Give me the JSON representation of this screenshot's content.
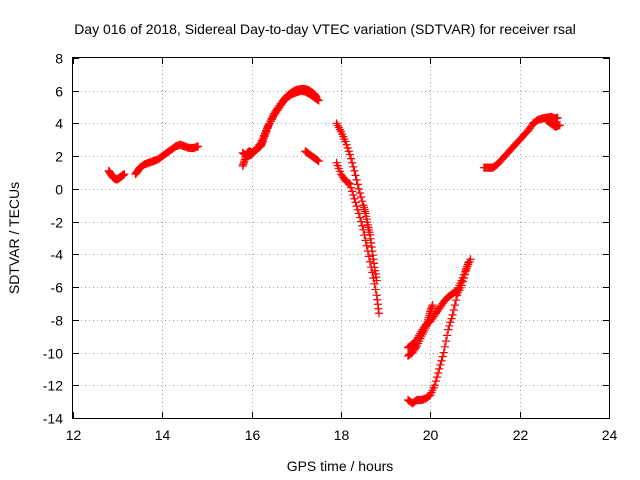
{
  "chart_data": {
    "type": "scatter",
    "title": "Day 016 of 2018, Sidereal Day-to-day VTEC variation (SDTVAR) for receiver rsal",
    "xlabel": "GPS time / hours",
    "ylabel": "SDTVAR / TECUs",
    "xlim": [
      12,
      24
    ],
    "ylim": [
      -14,
      8
    ],
    "xticks": [
      12,
      14,
      16,
      18,
      20,
      22,
      24
    ],
    "yticks": [
      -14,
      -12,
      -10,
      -8,
      -6,
      -4,
      -2,
      0,
      2,
      4,
      6,
      8
    ],
    "grid": true,
    "marker": "+",
    "series": [
      {
        "name": "sdtvar",
        "color": "#ff0000",
        "segments": [
          [
            [
              12.8,
              1.1
            ],
            [
              12.85,
              0.9
            ],
            [
              12.9,
              0.7
            ],
            [
              12.95,
              0.6
            ],
            [
              13.0,
              0.6
            ],
            [
              13.05,
              0.7
            ],
            [
              13.1,
              0.8
            ],
            [
              13.15,
              0.9
            ]
          ],
          [
            [
              13.4,
              0.9
            ],
            [
              13.45,
              1.1
            ],
            [
              13.5,
              1.3
            ],
            [
              13.6,
              1.5
            ],
            [
              13.7,
              1.6
            ],
            [
              13.8,
              1.7
            ],
            [
              13.9,
              1.8
            ],
            [
              14.0,
              2.0
            ],
            [
              14.1,
              2.2
            ],
            [
              14.2,
              2.4
            ],
            [
              14.3,
              2.6
            ],
            [
              14.4,
              2.7
            ],
            [
              14.5,
              2.6
            ],
            [
              14.6,
              2.5
            ],
            [
              14.7,
              2.5
            ],
            [
              14.8,
              2.6
            ]
          ],
          [
            [
              15.8,
              1.4
            ],
            [
              15.85,
              1.8
            ],
            [
              15.9,
              2.2
            ],
            [
              15.95,
              2.3
            ],
            [
              16.0,
              2.2
            ],
            [
              16.05,
              2.3
            ],
            [
              16.1,
              2.4
            ],
            [
              16.2,
              2.6
            ],
            [
              16.25,
              2.9
            ],
            [
              16.3,
              3.3
            ],
            [
              16.35,
              3.7
            ],
            [
              16.4,
              4.0
            ],
            [
              16.5,
              4.5
            ],
            [
              16.6,
              4.9
            ],
            [
              16.7,
              5.3
            ],
            [
              16.8,
              5.6
            ],
            [
              16.9,
              5.8
            ],
            [
              17.0,
              5.9
            ],
            [
              17.1,
              6.0
            ],
            [
              17.2,
              5.95
            ],
            [
              17.3,
              5.8
            ],
            [
              17.4,
              5.6
            ],
            [
              17.5,
              5.4
            ]
          ],
          [
            [
              15.8,
              2.2
            ],
            [
              15.9,
              2.0
            ],
            [
              16.0,
              2.1
            ],
            [
              16.1,
              2.4
            ],
            [
              16.2,
              2.8
            ],
            [
              16.3,
              3.4
            ],
            [
              16.4,
              4.0
            ],
            [
              16.5,
              4.6
            ],
            [
              16.6,
              5.0
            ],
            [
              16.7,
              5.4
            ],
            [
              16.8,
              5.7
            ],
            [
              16.9,
              5.9
            ],
            [
              17.0,
              6.05
            ],
            [
              17.1,
              6.1
            ],
            [
              17.2,
              6.1
            ],
            [
              17.3,
              6.0
            ],
            [
              17.4,
              5.8
            ],
            [
              17.45,
              5.6
            ]
          ],
          [
            [
              17.2,
              2.3
            ],
            [
              17.3,
              2.1
            ],
            [
              17.4,
              1.9
            ],
            [
              17.5,
              1.7
            ]
          ],
          [
            [
              17.9,
              1.6
            ],
            [
              18.0,
              0.9
            ],
            [
              18.1,
              0.5
            ],
            [
              18.2,
              0.3
            ],
            [
              18.3,
              -0.6
            ],
            [
              18.4,
              -1.5
            ],
            [
              18.5,
              -2.5
            ],
            [
              18.6,
              -3.8
            ],
            [
              18.7,
              -5.1
            ],
            [
              18.8,
              -6.5
            ],
            [
              18.85,
              -7.6
            ]
          ],
          [
            [
              17.9,
              4.0
            ],
            [
              18.0,
              3.5
            ],
            [
              18.1,
              2.9
            ],
            [
              18.2,
              2.1
            ],
            [
              18.3,
              1.1
            ],
            [
              18.4,
              0.0
            ],
            [
              18.5,
              -1.0
            ],
            [
              18.55,
              -1.5
            ],
            [
              18.6,
              -2.2
            ],
            [
              18.65,
              -2.8
            ],
            [
              18.7,
              -3.8
            ],
            [
              18.75,
              -4.8
            ],
            [
              18.8,
              -5.6
            ]
          ],
          [
            [
              19.5,
              -9.7
            ],
            [
              19.6,
              -9.5
            ],
            [
              19.7,
              -9.2
            ],
            [
              19.8,
              -8.7
            ],
            [
              19.9,
              -8.3
            ],
            [
              20.0,
              -8.1
            ],
            [
              20.1,
              -7.7
            ],
            [
              20.2,
              -7.3
            ],
            [
              20.3,
              -6.9
            ],
            [
              20.4,
              -6.6
            ],
            [
              20.5,
              -6.4
            ],
            [
              20.6,
              -6.2
            ],
            [
              20.7,
              -5.6
            ],
            [
              20.8,
              -4.9
            ],
            [
              20.9,
              -4.3
            ]
          ],
          [
            [
              19.5,
              -10.2
            ],
            [
              19.6,
              -10.0
            ],
            [
              19.7,
              -9.6
            ],
            [
              19.8,
              -9.0
            ],
            [
              19.9,
              -8.5
            ],
            [
              19.95,
              -8.0
            ],
            [
              20.0,
              -7.5
            ],
            [
              20.05,
              -7.1
            ]
          ],
          [
            [
              19.5,
              -12.9
            ],
            [
              19.6,
              -13.1
            ],
            [
              19.7,
              -12.9
            ],
            [
              19.8,
              -12.9
            ],
            [
              19.9,
              -12.8
            ],
            [
              20.0,
              -12.6
            ],
            [
              20.1,
              -12.0
            ],
            [
              20.2,
              -11.0
            ],
            [
              20.3,
              -10.0
            ],
            [
              20.4,
              -8.6
            ],
            [
              20.5,
              -7.7
            ],
            [
              20.6,
              -6.5
            ],
            [
              20.7,
              -5.9
            ],
            [
              20.8,
              -5.0
            ],
            [
              20.85,
              -4.5
            ]
          ],
          [
            [
              21.2,
              1.3
            ],
            [
              21.3,
              1.3
            ],
            [
              21.4,
              1.3
            ],
            [
              21.5,
              1.5
            ],
            [
              21.6,
              1.8
            ],
            [
              21.7,
              2.1
            ],
            [
              21.8,
              2.4
            ],
            [
              21.9,
              2.7
            ],
            [
              22.0,
              3.0
            ],
            [
              22.1,
              3.3
            ],
            [
              22.2,
              3.6
            ],
            [
              22.3,
              4.0
            ],
            [
              22.4,
              4.2
            ],
            [
              22.5,
              4.3
            ],
            [
              22.6,
              4.35
            ],
            [
              22.7,
              4.4
            ],
            [
              22.8,
              4.3
            ],
            [
              22.85,
              4.35
            ]
          ],
          [
            [
              22.6,
              4.2
            ],
            [
              22.7,
              4.0
            ],
            [
              22.8,
              3.8
            ],
            [
              22.9,
              3.9
            ]
          ]
        ]
      }
    ]
  }
}
